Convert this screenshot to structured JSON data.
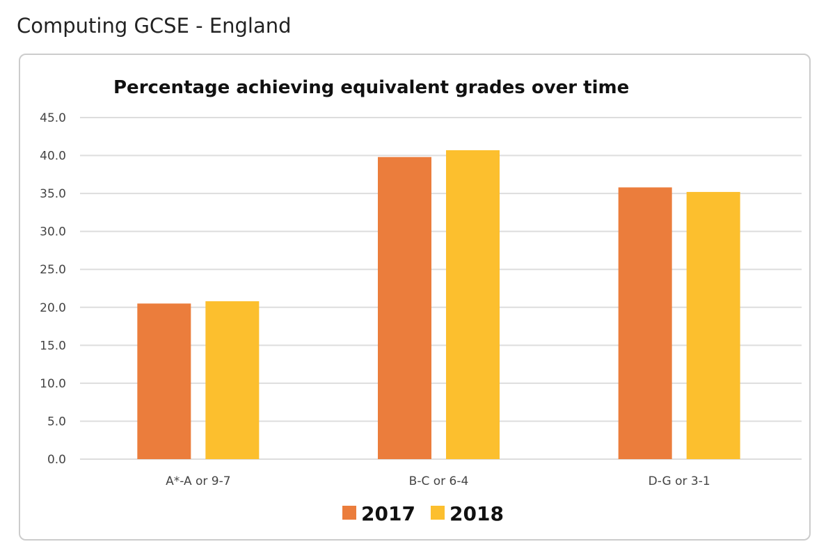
{
  "page_title": "Computing GCSE - England",
  "chart_data": {
    "type": "bar",
    "title": "Percentage achieving equivalent grades over time",
    "categories": [
      "A*-A or 9-7",
      "B-C or 6-4",
      "D-G or 3-1"
    ],
    "series": [
      {
        "name": "2017",
        "values": [
          20.5,
          39.8,
          35.8
        ],
        "color": "#EB7D3C"
      },
      {
        "name": "2018",
        "values": [
          20.8,
          40.7,
          35.2
        ],
        "color": "#FCBF2E"
      }
    ],
    "ylim": [
      0,
      45
    ],
    "yticks": [
      "0.0",
      "5.0",
      "10.0",
      "15.0",
      "20.0",
      "25.0",
      "30.0",
      "35.0",
      "40.0",
      "45.0"
    ],
    "grid": true,
    "legend": "bottom"
  }
}
